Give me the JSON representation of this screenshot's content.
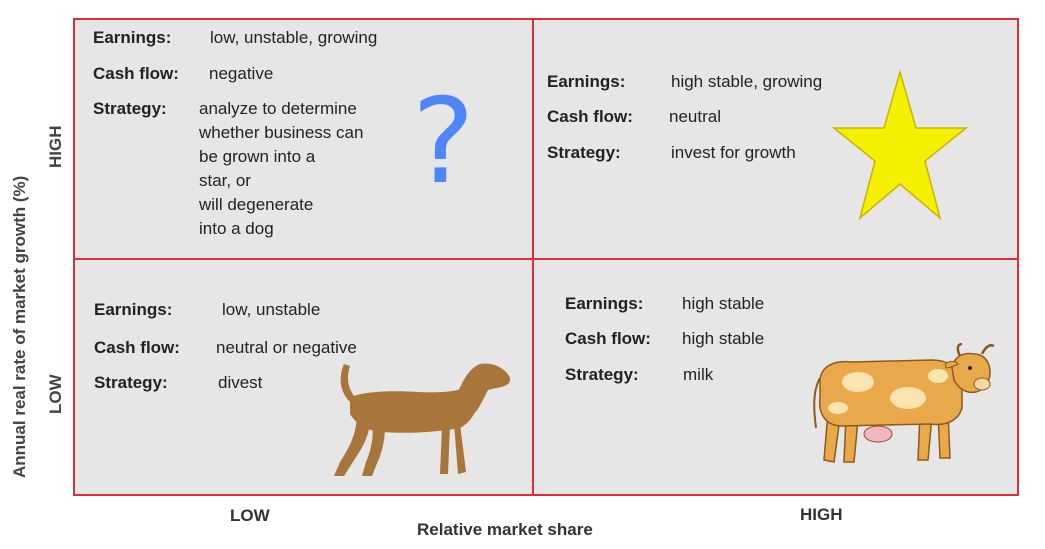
{
  "y_axis": {
    "title": "Annual real rate of market growth (%)",
    "high": "HIGH",
    "low": "LOW"
  },
  "x_axis": {
    "title": "Relative market share",
    "low": "LOW",
    "high": "HIGH"
  },
  "labels": {
    "earnings": "Earnings:",
    "cash_flow": "Cash flow:",
    "strategy": "Strategy:"
  },
  "quadrants": {
    "question_mark": {
      "icon": "question-mark-icon",
      "earnings": "low, unstable, growing",
      "cash_flow": "negative",
      "strategy": "analyze to determine\nwhether business can\nbe grown into a\nstar, or\nwill degenerate\ninto a dog",
      "symbol": "?"
    },
    "star": {
      "icon": "star-icon",
      "earnings": "high stable, growing",
      "cash_flow": "neutral",
      "strategy": "invest for growth"
    },
    "dog": {
      "icon": "dog-icon",
      "earnings": "low, unstable",
      "cash_flow": "neutral or negative",
      "strategy": "divest"
    },
    "cash_cow": {
      "icon": "cow-icon",
      "earnings": "high stable",
      "cash_flow": "high stable",
      "strategy": "milk"
    }
  },
  "colors": {
    "border": "#d9303a",
    "cell_background": "#e6e6e6",
    "question_mark": "#4f86f7",
    "star_fill": "#f5f000",
    "dog_fill": "#a8753b",
    "cow_fill": "#e9a94b"
  }
}
